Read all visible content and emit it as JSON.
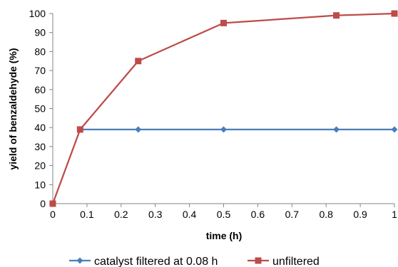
{
  "chart_data": {
    "type": "line",
    "title": "",
    "xlabel": "time (h)",
    "ylabel": "yield of benzaldehyde (%)",
    "xlim": [
      0,
      1
    ],
    "ylim": [
      0,
      100
    ],
    "x_ticks": [
      "0",
      "0.1",
      "0.2",
      "0.3",
      "0.4",
      "0.5",
      "0.6",
      "0.7",
      "0.8",
      "0.9",
      "1"
    ],
    "y_ticks": [
      "0",
      "10",
      "20",
      "30",
      "40",
      "50",
      "60",
      "70",
      "80",
      "90",
      "100"
    ],
    "grid": false,
    "legend_position": "bottom",
    "series": [
      {
        "name": "catalyst filtered at 0.08 h",
        "color": "#4a7ebb",
        "marker": "diamond",
        "x": [
          0.08,
          0.25,
          0.5,
          0.83,
          1.0
        ],
        "y": [
          39,
          39,
          39,
          39,
          39
        ]
      },
      {
        "name": "unfiltered",
        "color": "#be4b48",
        "marker": "square",
        "x": [
          0,
          0.08,
          0.25,
          0.5,
          0.83,
          1.0
        ],
        "y": [
          0,
          39,
          75,
          95,
          99,
          100
        ]
      }
    ]
  }
}
